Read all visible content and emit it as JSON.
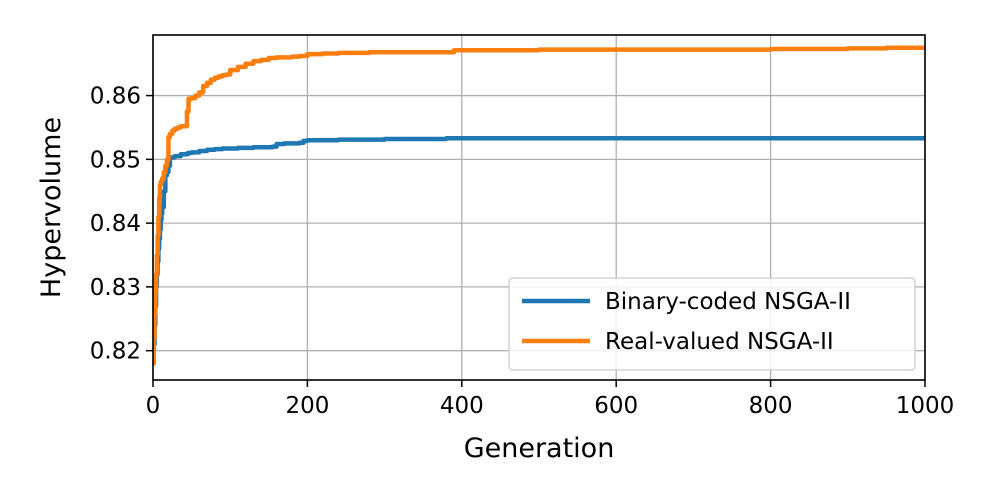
{
  "chart_data": {
    "type": "line",
    "title": "",
    "xlabel": "Generation",
    "ylabel": "Hypervolume",
    "xlim": [
      0,
      1000
    ],
    "ylim": [
      0.8154,
      0.8695
    ],
    "xticks": [
      0,
      200,
      400,
      600,
      800,
      1000
    ],
    "yticks": [
      0.82,
      0.83,
      0.84,
      0.85,
      0.86
    ],
    "xtick_labels": [
      "0",
      "200",
      "400",
      "600",
      "800",
      "1000"
    ],
    "ytick_labels": [
      "0.82",
      "0.83",
      "0.84",
      "0.85",
      "0.86"
    ],
    "grid": true,
    "legend_position": "lower-right",
    "series": [
      {
        "name": "Binary-coded NSGA-II",
        "color": "#1f77b4",
        "step": true,
        "x": [
          0,
          1,
          2,
          3,
          4,
          5,
          6,
          7,
          8,
          9,
          10,
          11,
          12,
          14,
          16,
          18,
          20,
          22,
          25,
          28,
          32,
          36,
          40,
          45,
          50,
          60,
          70,
          80,
          90,
          100,
          110,
          120,
          130,
          140,
          150,
          155,
          160,
          170,
          180,
          190,
          195,
          200,
          220,
          240,
          260,
          300,
          340,
          380,
          420,
          500,
          600,
          700,
          800,
          900,
          1000
        ],
        "y": [
          0.818,
          0.821,
          0.824,
          0.827,
          0.83,
          0.832,
          0.834,
          0.836,
          0.8375,
          0.839,
          0.8405,
          0.8415,
          0.8425,
          0.845,
          0.8475,
          0.848,
          0.849,
          0.8503,
          0.8503,
          0.8505,
          0.8505,
          0.8508,
          0.8508,
          0.851,
          0.8511,
          0.8513,
          0.8515,
          0.8516,
          0.8517,
          0.8517,
          0.8518,
          0.8518,
          0.8519,
          0.8519,
          0.8519,
          0.852,
          0.8524,
          0.8525,
          0.8525,
          0.8526,
          0.8529,
          0.853,
          0.853,
          0.8531,
          0.8531,
          0.8532,
          0.8532,
          0.8533,
          0.8533,
          0.8533,
          0.8533,
          0.8533,
          0.8533,
          0.8533,
          0.8533
        ]
      },
      {
        "name": "Real-valued NSGA-II",
        "color": "#ff7f0e",
        "step": true,
        "x": [
          0,
          1,
          2,
          3,
          4,
          5,
          6,
          7,
          8,
          9,
          10,
          12,
          14,
          16,
          18,
          20,
          22,
          25,
          28,
          32,
          36,
          40,
          44,
          46,
          50,
          55,
          60,
          65,
          70,
          75,
          80,
          85,
          90,
          95,
          100,
          110,
          120,
          130,
          140,
          150,
          160,
          170,
          180,
          190,
          200,
          220,
          240,
          280,
          320,
          385,
          390,
          450,
          500,
          600,
          700,
          800,
          900,
          950,
          1000
        ],
        "y": [
          0.818,
          0.822,
          0.826,
          0.829,
          0.832,
          0.835,
          0.838,
          0.841,
          0.844,
          0.846,
          0.8465,
          0.847,
          0.848,
          0.849,
          0.85,
          0.8535,
          0.854,
          0.8545,
          0.8548,
          0.855,
          0.8552,
          0.8552,
          0.8575,
          0.8595,
          0.8596,
          0.86,
          0.8605,
          0.8615,
          0.862,
          0.8625,
          0.8628,
          0.863,
          0.8632,
          0.8633,
          0.864,
          0.8645,
          0.865,
          0.8654,
          0.8656,
          0.8659,
          0.866,
          0.866,
          0.8661,
          0.8662,
          0.8665,
          0.8666,
          0.8667,
          0.8668,
          0.8668,
          0.8668,
          0.8671,
          0.8671,
          0.8672,
          0.8672,
          0.8672,
          0.8673,
          0.8674,
          0.8675,
          0.8675
        ]
      }
    ]
  }
}
